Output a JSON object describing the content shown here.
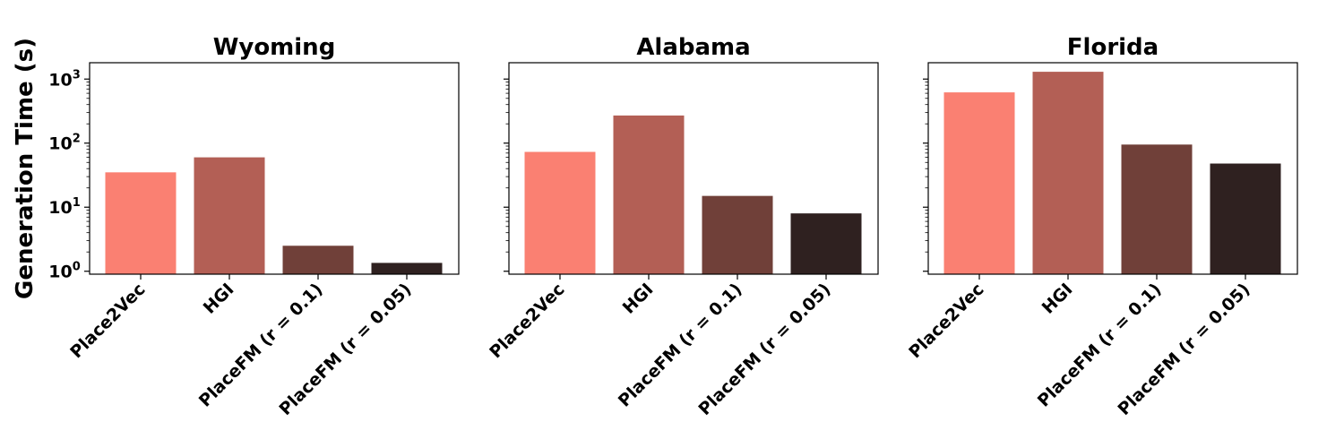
{
  "chart_data": [
    {
      "type": "bar",
      "title": "Wyoming",
      "ylabel": "Generation Time (s)",
      "yscale": "log",
      "ylim": [
        0.9,
        1800
      ],
      "yticks": [
        1,
        10,
        100,
        1000
      ],
      "yticklabels": [
        {
          "base": "10",
          "exp": "0"
        },
        {
          "base": "10",
          "exp": "1"
        },
        {
          "base": "10",
          "exp": "2"
        },
        {
          "base": "10",
          "exp": "3"
        }
      ],
      "categories": [
        "Place2Vec",
        "HGI",
        "PlaceFM (r = 0.1)",
        "PlaceFM (r = 0.05)"
      ],
      "values": [
        35,
        60,
        2.5,
        1.35
      ],
      "colors": [
        "#fa8072",
        "#b35f55",
        "#704039",
        "#2f2120"
      ],
      "grid": false
    },
    {
      "type": "bar",
      "title": "Alabama",
      "yscale": "log",
      "ylim": [
        0.9,
        1800
      ],
      "categories": [
        "Place2Vec",
        "HGI",
        "PlaceFM (r = 0.1)",
        "PlaceFM (r = 0.05)"
      ],
      "values": [
        73,
        270,
        15,
        8
      ],
      "colors": [
        "#fa8072",
        "#b35f55",
        "#704039",
        "#2f2120"
      ],
      "grid": false
    },
    {
      "type": "bar",
      "title": "Florida",
      "yscale": "log",
      "ylim": [
        0.9,
        1800
      ],
      "categories": [
        "Place2Vec",
        "HGI",
        "PlaceFM (r = 0.1)",
        "PlaceFM (r = 0.05)"
      ],
      "values": [
        620,
        1300,
        95,
        48
      ],
      "colors": [
        "#fa8072",
        "#b35f55",
        "#704039",
        "#2f2120"
      ],
      "grid": false
    }
  ]
}
